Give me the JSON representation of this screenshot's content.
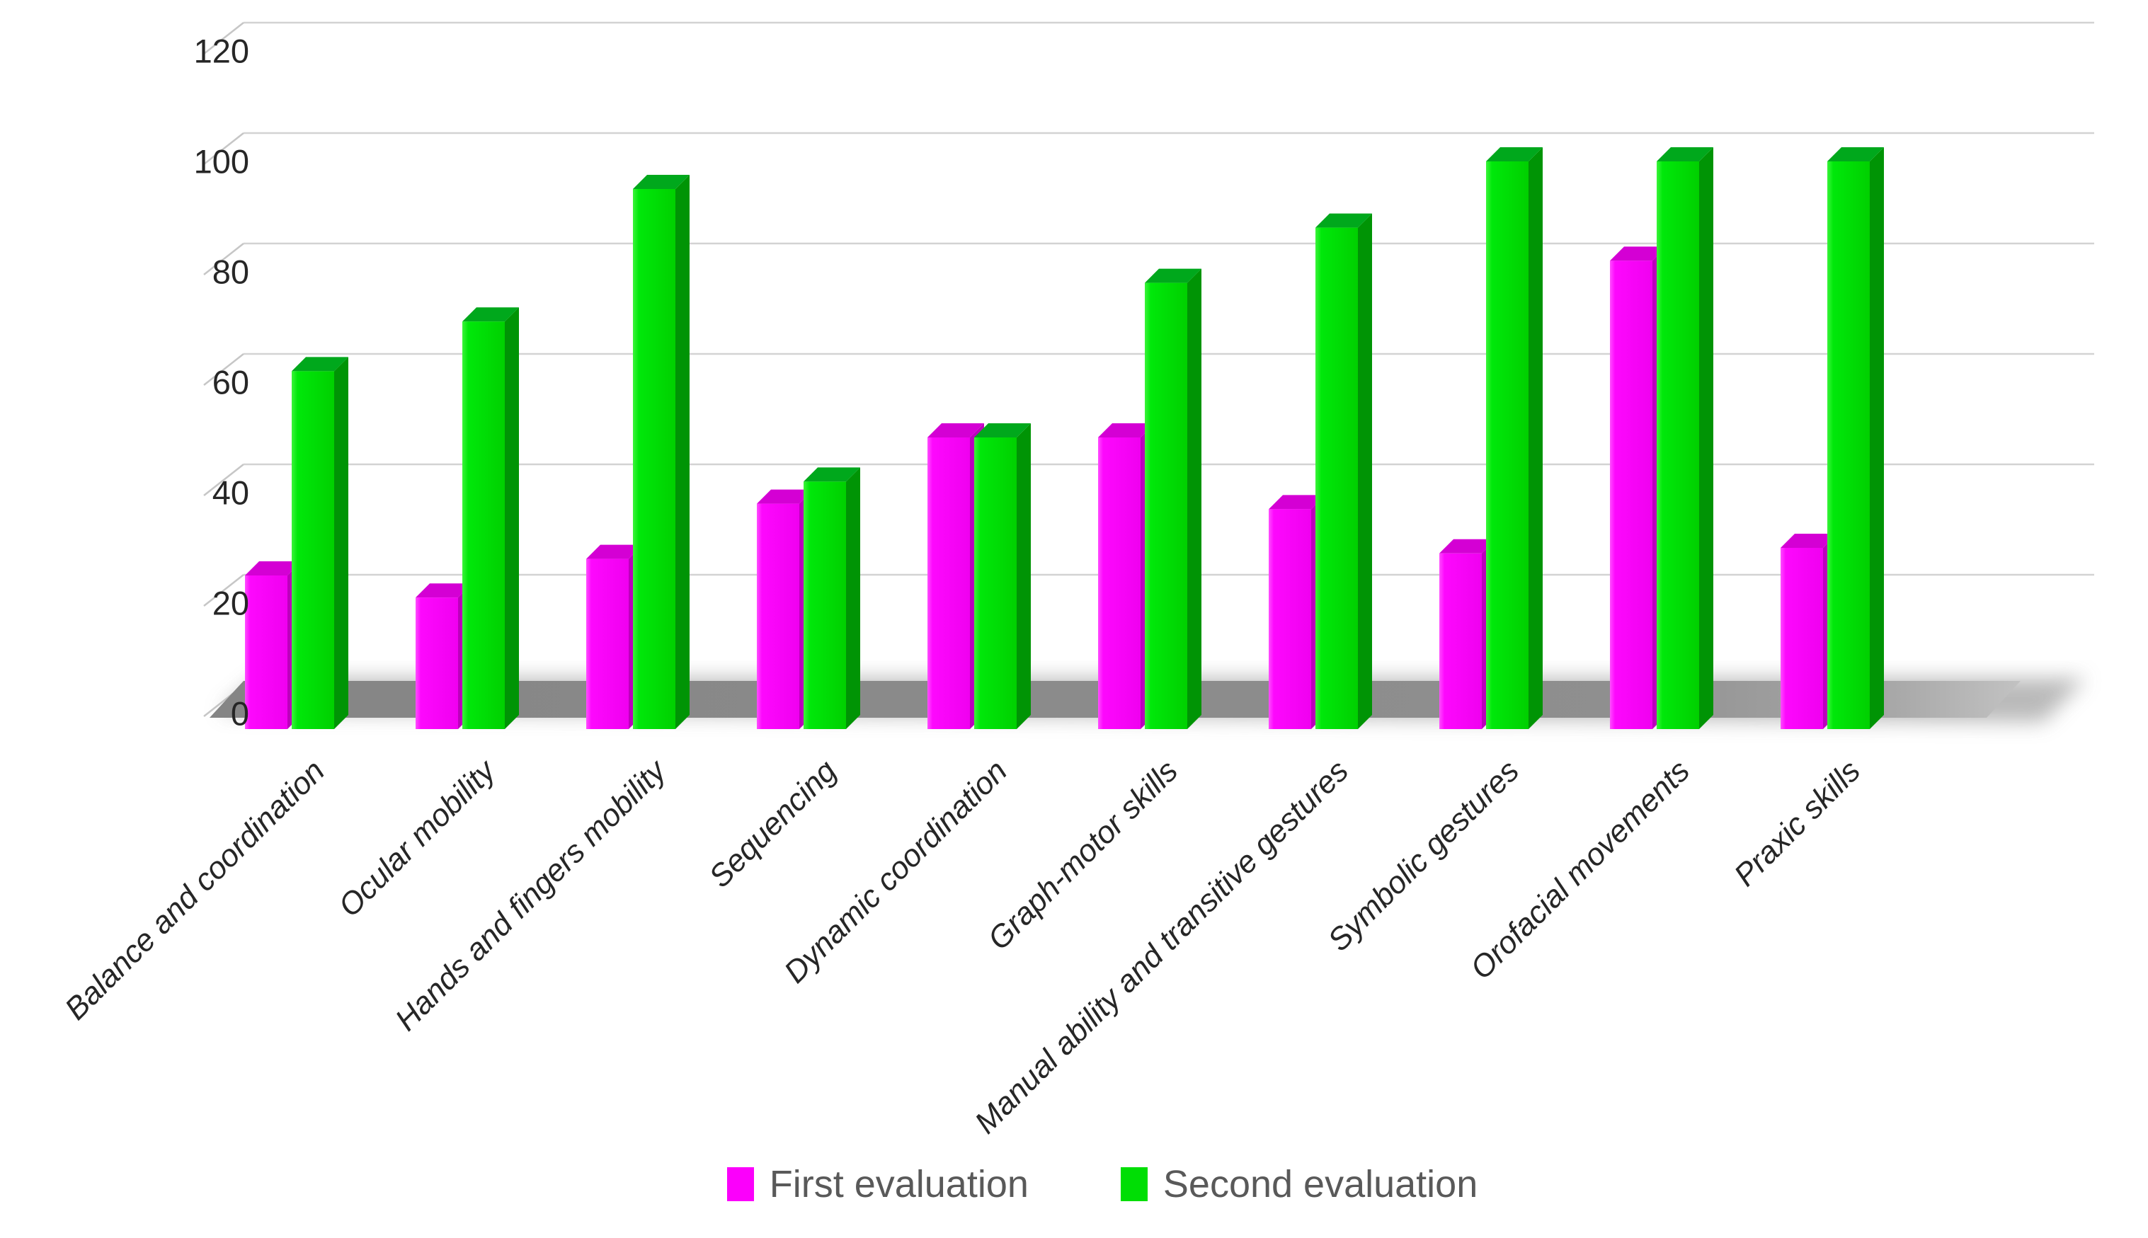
{
  "chart_data": {
    "type": "bar",
    "style": "3d-clustered",
    "title": "",
    "xlabel": "",
    "ylabel": "",
    "categories": [
      "Balance and coordination",
      "Ocular mobility",
      "Hands and fingers mobility",
      "Sequencing",
      "Dynamic coordination",
      "Graph-motor skills",
      "Manual ability and transitive gestures",
      "Symbolic gestures",
      "Orofacial movements",
      "Praxic skills"
    ],
    "series": [
      {
        "name": "First evaluation",
        "values": [
          25,
          21,
          28,
          38,
          50,
          50,
          37,
          29,
          82,
          30
        ],
        "color_front": "#FB00FB",
        "color_top": "#D400D4",
        "color_side": "#BC00BC"
      },
      {
        "name": "Second evaluation",
        "values": [
          62,
          71,
          95,
          42,
          50,
          78,
          88,
          100,
          100,
          100
        ],
        "color_front": "#00DE05",
        "color_top": "#00A81C",
        "color_side": "#009405"
      }
    ],
    "ylim": [
      0,
      120
    ],
    "yticks": [
      0,
      20,
      40,
      60,
      80,
      100,
      120
    ],
    "grid": true,
    "legend_position": "bottom",
    "axis_text_color": "#262626",
    "legend_text_color": "#595959",
    "gridline_color": "#D3D3D3",
    "floor_color": "#8E8E8E"
  }
}
